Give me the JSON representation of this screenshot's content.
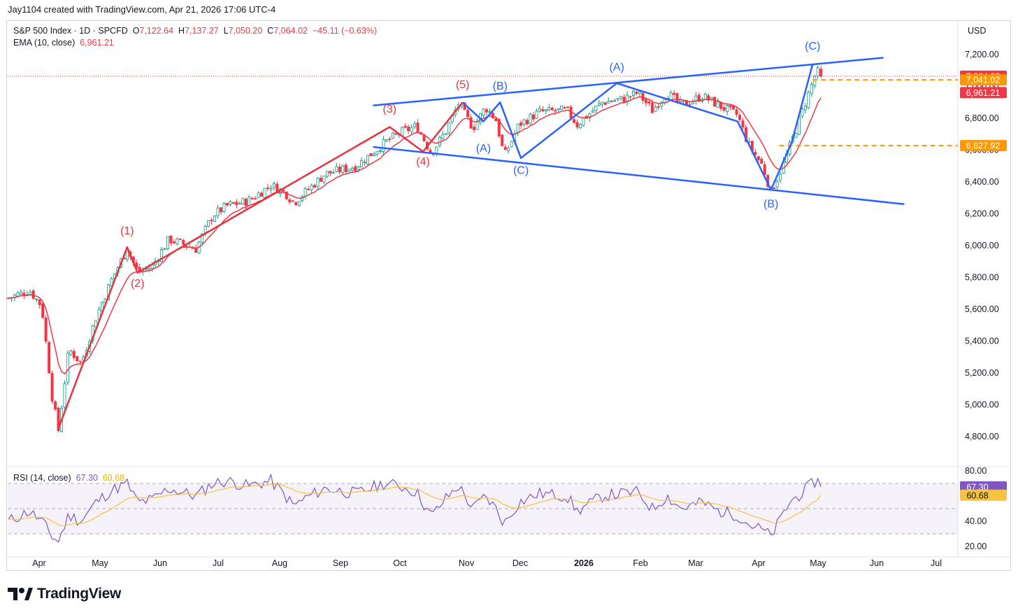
{
  "header": {
    "credit": "Jay1104 created with TradingView.com, Apr 21, 2026 17:06 UTC-4"
  },
  "legend": {
    "symbol": "S&P 500 Index · 1D · SPCFD",
    "o_label": "O",
    "o_value": "7,122.64",
    "h_label": "H",
    "h_value": "7,137.27",
    "l_label": "L",
    "l_value": "7,050.20",
    "c_label": "C",
    "c_value": "7,064.02",
    "change": "−45.11 (−0.63%)",
    "ema_label": "EMA (10, close)",
    "ema_value": "6,961.21"
  },
  "rsi_legend": {
    "label": "RSI (14, close)",
    "value": "67.30",
    "ma_value": "60.68"
  },
  "currency": "USD",
  "brand": {
    "name": "TradingView"
  },
  "colors": {
    "up": "#089981",
    "down": "#f23645",
    "ema": "#f23645",
    "wave": "#e8323e",
    "channel": "#2962ff",
    "rsi": "#7e57c2",
    "rsi_ma": "#f5c242",
    "level": "#ff9800"
  },
  "chart_data": {
    "type": "candlestick",
    "title": "S&P 500 Index · 1D · SPCFD",
    "y_axis": {
      "range": [
        4650,
        7300
      ],
      "ticks": [
        "7,200.00",
        "7,000.00",
        "6,800.00",
        "6,600.00",
        "6,400.00",
        "6,200.00",
        "6,000.00",
        "5,800.00",
        "5,600.00",
        "5,400.00",
        "5,200.00",
        "5,000.00",
        "4,800.00"
      ],
      "tick_values": [
        7200,
        7000,
        6800,
        6600,
        6400,
        6200,
        6000,
        5800,
        5600,
        5400,
        5200,
        5000,
        4800
      ]
    },
    "x_axis": {
      "ticks": [
        "Apr",
        "May",
        "Jun",
        "Jul",
        "Aug",
        "Sep",
        "Oct",
        "Nov",
        "Dec",
        "2026",
        "Feb",
        "Mar",
        "Apr",
        "May",
        "Jun",
        "Jul"
      ],
      "bold": [
        false,
        false,
        false,
        false,
        false,
        false,
        false,
        false,
        false,
        true,
        false,
        false,
        false,
        false,
        false,
        false
      ]
    },
    "price_waypoints": [
      {
        "d": 0,
        "p": 5670
      },
      {
        "d": 10,
        "p": 5720
      },
      {
        "d": 16,
        "p": 5620
      },
      {
        "d": 21,
        "p": 5050
      },
      {
        "d": 24,
        "p": 4840
      },
      {
        "d": 29,
        "p": 5350
      },
      {
        "d": 35,
        "p": 5260
      },
      {
        "d": 42,
        "p": 5550
      },
      {
        "d": 50,
        "p": 5800
      },
      {
        "d": 57,
        "p": 5980
      },
      {
        "d": 62,
        "p": 5830
      },
      {
        "d": 69,
        "p": 5870
      },
      {
        "d": 77,
        "p": 6040
      },
      {
        "d": 90,
        "p": 5980
      },
      {
        "d": 98,
        "p": 6190
      },
      {
        "d": 105,
        "p": 6250
      },
      {
        "d": 115,
        "p": 6280
      },
      {
        "d": 126,
        "p": 6380
      },
      {
        "d": 133,
        "p": 6330
      },
      {
        "d": 137,
        "p": 6270
      },
      {
        "d": 142,
        "p": 6330
      },
      {
        "d": 152,
        "p": 6450
      },
      {
        "d": 167,
        "p": 6500
      },
      {
        "d": 180,
        "p": 6640
      },
      {
        "d": 188,
        "p": 6710
      },
      {
        "d": 196,
        "p": 6750
      },
      {
        "d": 203,
        "p": 6580
      },
      {
        "d": 210,
        "p": 6720
      },
      {
        "d": 216,
        "p": 6890
      },
      {
        "d": 223,
        "p": 6740
      },
      {
        "d": 229,
        "p": 6870
      },
      {
        "d": 234,
        "p": 6790
      },
      {
        "d": 238,
        "p": 6560
      },
      {
        "d": 245,
        "p": 6760
      },
      {
        "d": 255,
        "p": 6840
      },
      {
        "d": 268,
        "p": 6850
      },
      {
        "d": 273,
        "p": 6760
      },
      {
        "d": 285,
        "p": 6900
      },
      {
        "d": 295,
        "p": 6920
      },
      {
        "d": 302,
        "p": 6960
      },
      {
        "d": 309,
        "p": 6850
      },
      {
        "d": 316,
        "p": 6960
      },
      {
        "d": 323,
        "p": 6880
      },
      {
        "d": 333,
        "p": 6940
      },
      {
        "d": 341,
        "p": 6880
      },
      {
        "d": 350,
        "p": 6820
      },
      {
        "d": 355,
        "p": 6640
      },
      {
        "d": 362,
        "p": 6500
      },
      {
        "d": 366,
        "p": 6340
      },
      {
        "d": 370,
        "p": 6450
      },
      {
        "d": 375,
        "p": 6620
      },
      {
        "d": 382,
        "p": 6880
      },
      {
        "d": 388,
        "p": 7100
      },
      {
        "d": 390,
        "p": 7064
      }
    ],
    "ema": {
      "period": 10,
      "last": 6961.21
    },
    "price_labels": [
      {
        "text": "7,064.02",
        "value": 7064.02,
        "color": "#f23645"
      },
      {
        "text": "7,041.02",
        "value": 7041.02,
        "color": "#ff9800"
      },
      {
        "text": "6,961.21",
        "value": 6961.21,
        "color": "#f23645"
      },
      {
        "text": "6,627.92",
        "value": 6627.92,
        "color": "#ff9800"
      }
    ],
    "levels": [
      {
        "value": 7041.02,
        "from_day": 386
      },
      {
        "value": 6627.92,
        "from_day": 370
      }
    ],
    "red_wave_path": [
      [
        24,
        4850
      ],
      [
        57,
        5990
      ],
      [
        62,
        5830
      ],
      [
        183,
        6745
      ],
      [
        199,
        6590
      ],
      [
        218,
        6900
      ]
    ],
    "red_wave_labels": [
      {
        "text": "(1)",
        "d": 57,
        "p": 6070
      },
      {
        "text": "(2)",
        "d": 62,
        "p": 5740
      },
      {
        "text": "(3)",
        "d": 183,
        "p": 6835
      },
      {
        "text": "(4)",
        "d": 199,
        "p": 6505
      },
      {
        "text": "(5)",
        "d": 218,
        "p": 6990
      }
    ],
    "blue_wave_path": [
      [
        218,
        6900
      ],
      [
        228,
        6780
      ],
      [
        236,
        6900
      ],
      [
        246,
        6550
      ],
      [
        292,
        7020
      ],
      [
        350,
        6780
      ],
      [
        366,
        6350
      ],
      [
        376,
        6650
      ],
      [
        386,
        7140
      ]
    ],
    "blue_wave_labels": [
      {
        "text": "(B)",
        "d": 236,
        "p": 6980
      },
      {
        "text": "(A)",
        "d": 228,
        "p": 6590
      },
      {
        "text": "(C)",
        "d": 246,
        "p": 6450
      },
      {
        "text": "(A)",
        "d": 292,
        "p": 7100
      },
      {
        "text": "(B)",
        "d": 366,
        "p": 6240
      },
      {
        "text": "(C)",
        "d": 386,
        "p": 7230
      }
    ],
    "channel_lines": [
      [
        [
          175,
          6880
        ],
        [
          420,
          7180
        ]
      ],
      [
        [
          175,
          6620
        ],
        [
          430,
          6260
        ]
      ]
    ],
    "rsi": {
      "label": "RSI (14, close)",
      "range": [
        20,
        80
      ],
      "ticks": [
        "80.00",
        "60.00",
        "40.00",
        "20.00"
      ],
      "tick_values": [
        80,
        60,
        40,
        20
      ],
      "band": [
        30,
        70
      ],
      "mid": 50,
      "waypoints": [
        {
          "d": 0,
          "p": 40
        },
        {
          "d": 10,
          "p": 48
        },
        {
          "d": 16,
          "p": 40
        },
        {
          "d": 21,
          "p": 28
        },
        {
          "d": 24,
          "p": 24
        },
        {
          "d": 29,
          "p": 45
        },
        {
          "d": 35,
          "p": 40
        },
        {
          "d": 42,
          "p": 55
        },
        {
          "d": 50,
          "p": 65
        },
        {
          "d": 57,
          "p": 70
        },
        {
          "d": 62,
          "p": 55
        },
        {
          "d": 69,
          "p": 57
        },
        {
          "d": 77,
          "p": 66
        },
        {
          "d": 90,
          "p": 60
        },
        {
          "d": 98,
          "p": 70
        },
        {
          "d": 105,
          "p": 72
        },
        {
          "d": 115,
          "p": 68
        },
        {
          "d": 126,
          "p": 72
        },
        {
          "d": 133,
          "p": 60
        },
        {
          "d": 137,
          "p": 52
        },
        {
          "d": 142,
          "p": 58
        },
        {
          "d": 152,
          "p": 66
        },
        {
          "d": 167,
          "p": 62
        },
        {
          "d": 180,
          "p": 70
        },
        {
          "d": 188,
          "p": 68
        },
        {
          "d": 196,
          "p": 63
        },
        {
          "d": 203,
          "p": 44
        },
        {
          "d": 210,
          "p": 58
        },
        {
          "d": 216,
          "p": 68
        },
        {
          "d": 223,
          "p": 50
        },
        {
          "d": 229,
          "p": 60
        },
        {
          "d": 234,
          "p": 50
        },
        {
          "d": 238,
          "p": 38
        },
        {
          "d": 245,
          "p": 55
        },
        {
          "d": 255,
          "p": 62
        },
        {
          "d": 268,
          "p": 60
        },
        {
          "d": 273,
          "p": 48
        },
        {
          "d": 285,
          "p": 60
        },
        {
          "d": 295,
          "p": 62
        },
        {
          "d": 302,
          "p": 63
        },
        {
          "d": 309,
          "p": 50
        },
        {
          "d": 316,
          "p": 60
        },
        {
          "d": 323,
          "p": 50
        },
        {
          "d": 333,
          "p": 55
        },
        {
          "d": 341,
          "p": 48
        },
        {
          "d": 350,
          "p": 45
        },
        {
          "d": 355,
          "p": 38
        },
        {
          "d": 362,
          "p": 33
        },
        {
          "d": 366,
          "p": 28
        },
        {
          "d": 370,
          "p": 40
        },
        {
          "d": 375,
          "p": 55
        },
        {
          "d": 382,
          "p": 64
        },
        {
          "d": 388,
          "p": 73
        },
        {
          "d": 390,
          "p": 67.3
        }
      ],
      "last": 67.3,
      "ma_last": 60.68,
      "price_labels": [
        {
          "text": "67.30",
          "value": 67.3,
          "color": "#7e57c2"
        },
        {
          "text": "60.68",
          "value": 60.68,
          "color": "#f5c242"
        }
      ]
    }
  }
}
